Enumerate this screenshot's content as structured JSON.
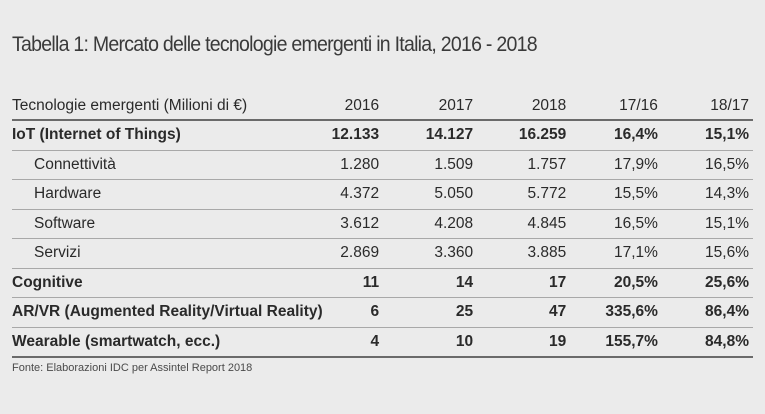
{
  "title": "Tabella 1: Mercato delle tecnologie emergenti in Italia, 2016 - 2018",
  "headers": [
    "Tecnologie emergenti (Milioni di €)",
    "2016",
    "2017",
    "2018",
    "17/16",
    "18/17"
  ],
  "rows": [
    {
      "label": "IoT (Internet of Things)",
      "v2016": "12.133",
      "v2017": "14.127",
      "v2018": "16.259",
      "g1716": "16,4%",
      "g1817": "15,1%"
    },
    {
      "label": "Connettività",
      "v2016": "1.280",
      "v2017": "1.509",
      "v2018": "1.757",
      "g1716": "17,9%",
      "g1817": "16,5%"
    },
    {
      "label": "Hardware",
      "v2016": "4.372",
      "v2017": "5.050",
      "v2018": "5.772",
      "g1716": "15,5%",
      "g1817": "14,3%"
    },
    {
      "label": "Software",
      "v2016": "3.612",
      "v2017": "4.208",
      "v2018": "4.845",
      "g1716": "16,5%",
      "g1817": "15,1%"
    },
    {
      "label": "Servizi",
      "v2016": "2.869",
      "v2017": "3.360",
      "v2018": "3.885",
      "g1716": "17,1%",
      "g1817": "15,6%"
    },
    {
      "label": "Cognitive",
      "v2016": "11",
      "v2017": "14",
      "v2018": "17",
      "g1716": "20,5%",
      "g1817": "25,6%"
    },
    {
      "label": "AR/VR (Augmented Reality/Virtual Reality)",
      "v2016": "6",
      "v2017": "25",
      "v2018": "47",
      "g1716": "335,6%",
      "g1817": "86,4%"
    },
    {
      "label": "Wearable (smartwatch, ecc.)",
      "v2016": "4",
      "v2017": "10",
      "v2018": "19",
      "g1716": "155,7%",
      "g1817": "84,8%"
    }
  ],
  "source": "Fonte: Elaborazioni IDC per Assintel Report 2018"
}
